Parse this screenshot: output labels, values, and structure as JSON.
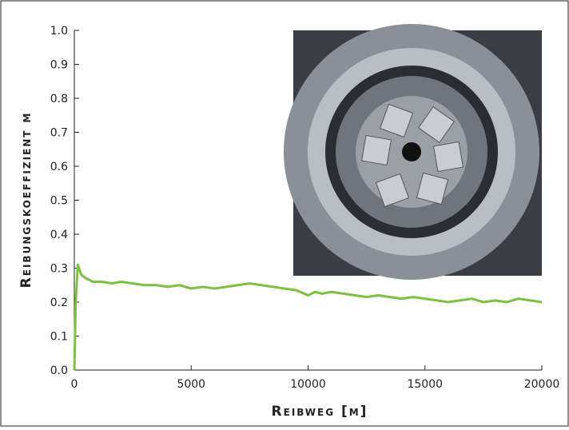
{
  "chart_data": {
    "type": "line",
    "x_label": "Reibweg [m]",
    "y_label": "Reibungskoeffizient μ",
    "x": [
      0,
      60,
      150,
      300,
      500,
      800,
      1200,
      1600,
      2000,
      2500,
      3000,
      3500,
      4000,
      4500,
      5000,
      5500,
      6000,
      6500,
      7000,
      7500,
      8000,
      8500,
      9000,
      9500,
      10000,
      10300,
      10600,
      11000,
      11500,
      12000,
      12500,
      13000,
      13500,
      14000,
      14500,
      15000,
      15500,
      16000,
      16500,
      17000,
      17500,
      18000,
      18500,
      19000,
      19500,
      20000
    ],
    "values": [
      0.0,
      0.2,
      0.31,
      0.28,
      0.27,
      0.26,
      0.26,
      0.255,
      0.26,
      0.255,
      0.25,
      0.25,
      0.245,
      0.25,
      0.24,
      0.245,
      0.24,
      0.245,
      0.25,
      0.255,
      0.25,
      0.245,
      0.24,
      0.235,
      0.22,
      0.23,
      0.225,
      0.23,
      0.225,
      0.22,
      0.215,
      0.22,
      0.215,
      0.21,
      0.215,
      0.21,
      0.205,
      0.2,
      0.205,
      0.21,
      0.2,
      0.205,
      0.2,
      0.21,
      0.205,
      0.2
    ],
    "color": "#7cc142",
    "xlim": [
      0,
      20000
    ],
    "xticks": [
      0,
      5000,
      10000,
      15000,
      20000
    ],
    "ylim": [
      0,
      1
    ],
    "yticks": [
      {
        "value": 0,
        "label": "0.0"
      },
      0.1,
      0.2,
      0.3,
      0.4,
      0.5,
      0.6,
      0.7,
      0.8,
      0.9,
      {
        "value": 1,
        "label": "1.0"
      }
    ]
  }
}
